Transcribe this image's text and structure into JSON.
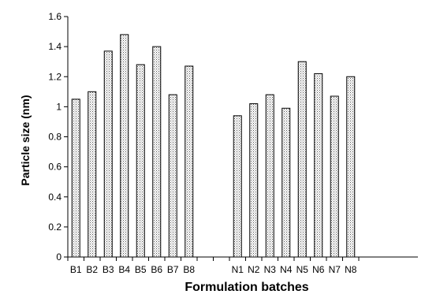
{
  "chart_data": {
    "type": "bar",
    "title": "",
    "xlabel": "Formulation batches",
    "ylabel": "Particle size (nm)",
    "ylim": [
      0,
      1.6
    ],
    "yticks": [
      "0",
      "0.2",
      "0.4",
      "0.6",
      "0.8",
      "1",
      "1.2",
      "1.4",
      "1.6"
    ],
    "grid": false,
    "bar_fill": "dotted",
    "groups": [
      {
        "categories": [
          "B1",
          "B2",
          "B3",
          "B4",
          "B5",
          "B6",
          "B7",
          "B8"
        ],
        "values": [
          1.05,
          1.1,
          1.37,
          1.48,
          1.28,
          1.4,
          1.08,
          1.27
        ]
      },
      {
        "categories": [
          "N1",
          "N2",
          "N3",
          "N4",
          "N5",
          "N6",
          "N7",
          "N8"
        ],
        "values": [
          0.94,
          1.02,
          1.08,
          0.99,
          1.3,
          1.22,
          1.07,
          1.2
        ]
      }
    ]
  }
}
